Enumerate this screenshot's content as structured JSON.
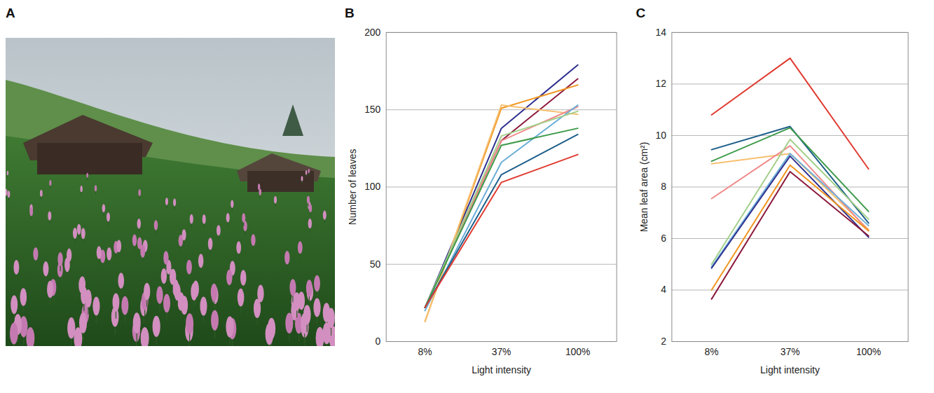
{
  "photo": {
    "panel": "A"
  },
  "chart_data": [
    {
      "panel": "B",
      "type": "line",
      "categories": [
        "8%",
        "37%",
        "100%"
      ],
      "xlabel": "Light intensity",
      "ylabel": "Number of leaves",
      "ylim": [
        0,
        200
      ],
      "yticks": [
        0,
        50,
        100,
        150,
        200
      ],
      "grid": true,
      "series": [
        {
          "color": "#2e2f8f",
          "values": [
            22,
            138,
            179
          ]
        },
        {
          "color": "#8b1a3c",
          "values": [
            22,
            130,
            170
          ]
        },
        {
          "color": "#f0951e",
          "values": [
            13,
            151,
            166
          ]
        },
        {
          "color": "#f7c070",
          "values": [
            13,
            153,
            147
          ]
        },
        {
          "color": "#f08a8a",
          "values": [
            22,
            130,
            152
          ]
        },
        {
          "color": "#6aaed8",
          "values": [
            20,
            116,
            153
          ]
        },
        {
          "color": "#a3cf8a",
          "values": [
            22,
            133,
            149
          ]
        },
        {
          "color": "#3d9a4a",
          "values": [
            22,
            127,
            138
          ]
        },
        {
          "color": "#1d5f8a",
          "values": [
            22,
            108,
            134
          ]
        },
        {
          "color": "#e03a30",
          "values": [
            22,
            103,
            121
          ]
        }
      ]
    },
    {
      "panel": "C",
      "type": "line",
      "categories": [
        "8%",
        "37%",
        "100%"
      ],
      "xlabel": "Light intensity",
      "ylabel": "Mean leaf area (cm²)",
      "ylim": [
        2,
        14
      ],
      "yticks": [
        2,
        4,
        6,
        8,
        10,
        12,
        14
      ],
      "grid": true,
      "series": [
        {
          "color": "#e03a30",
          "values": [
            10.8,
            13.0,
            8.7
          ]
        },
        {
          "color": "#1d5f8a",
          "values": [
            9.45,
            10.35,
            6.6
          ]
        },
        {
          "color": "#3d9a4a",
          "values": [
            9.0,
            10.3,
            7.05
          ]
        },
        {
          "color": "#f7c070",
          "values": [
            8.9,
            9.3,
            6.35
          ]
        },
        {
          "color": "#f08a8a",
          "values": [
            7.55,
            9.6,
            6.3
          ]
        },
        {
          "color": "#a3cf8a",
          "values": [
            5.0,
            9.85,
            6.75
          ]
        },
        {
          "color": "#6aaed8",
          "values": [
            4.9,
            9.3,
            6.5
          ]
        },
        {
          "color": "#2e2f8f",
          "values": [
            4.85,
            9.2,
            6.05
          ]
        },
        {
          "color": "#f0951e",
          "values": [
            4.0,
            8.85,
            6.3
          ]
        },
        {
          "color": "#8b1a3c",
          "values": [
            3.65,
            8.6,
            6.1
          ]
        }
      ]
    }
  ]
}
